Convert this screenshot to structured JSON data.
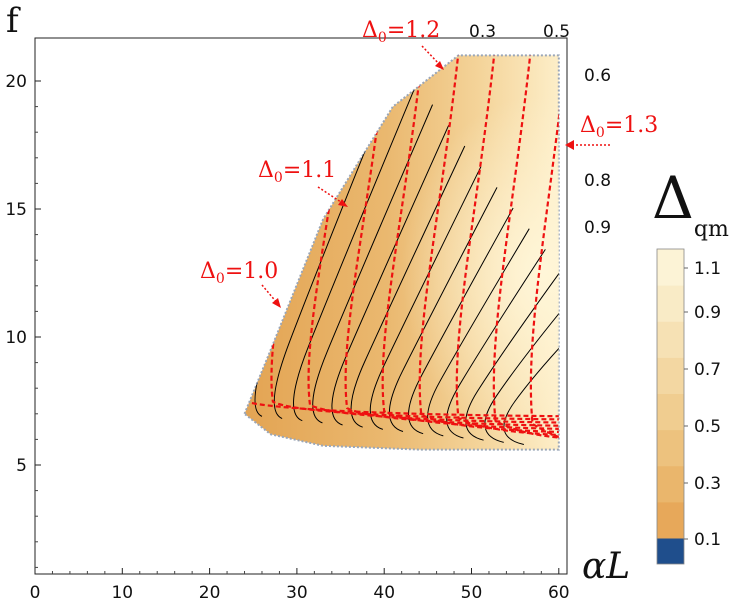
{
  "chart_data": {
    "type": "contour",
    "title": "",
    "xlabel": "αL",
    "ylabel": "f",
    "xlim": [
      0,
      62
    ],
    "ylim": [
      0,
      21
    ],
    "x_ticks": [
      "0",
      "10",
      "20",
      "30",
      "40",
      "50",
      "60"
    ],
    "y_ticks": [
      "5",
      "10",
      "15",
      "20"
    ],
    "region": {
      "description_points": [
        [
          24,
          7.0
        ],
        [
          27,
          9.5
        ],
        [
          33,
          14.6
        ],
        [
          41,
          19.0
        ],
        [
          48.5,
          21
        ],
        [
          60,
          21
        ],
        [
          60,
          5.6
        ],
        [
          44,
          5.6
        ],
        [
          33,
          5.75
        ],
        [
          27,
          6.2
        ],
        [
          24,
          7.0
        ]
      ]
    },
    "colorbar": {
      "title": "Δ",
      "title_subscript": "qm",
      "tick_labels": [
        "0.1",
        "0.3",
        "0.5",
        "0.7",
        "0.9",
        "1.1"
      ],
      "low_color": "#1f4e8c",
      "colors": [
        "#e7a85a",
        "#eab66c",
        "#edc27e",
        "#f0cd90",
        "#f3d7a2",
        "#f6e1b4",
        "#f9ebc6",
        "#fcf3d6"
      ]
    },
    "black_contour_labels": [
      "0.3",
      "0.5",
      "0.6",
      "0.8",
      "0.9"
    ],
    "red_contour_labels": [
      {
        "base": "Δ",
        "sub": "0",
        "text": "=1.0"
      },
      {
        "base": "Δ",
        "sub": "0",
        "text": "=1.1"
      },
      {
        "base": "Δ",
        "sub": "0",
        "text": "=1.2"
      },
      {
        "base": "Δ",
        "sub": "0",
        "text": "=1.3"
      }
    ],
    "colors": {
      "red_contour": "#ee1111",
      "black_contour": "#000000"
    }
  }
}
